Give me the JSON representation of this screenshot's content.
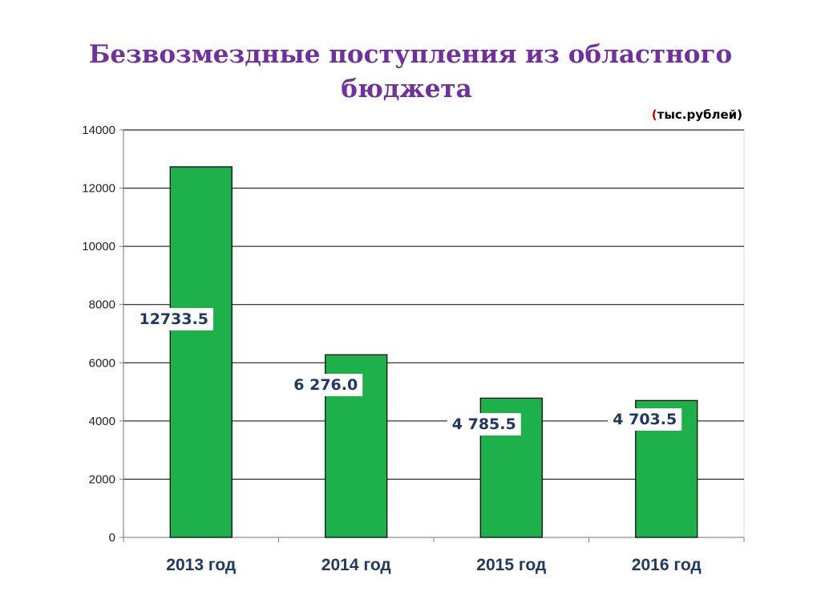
{
  "chart_data": {
    "type": "bar",
    "title_line1": "Безвозмездные поступления из областного",
    "title_line2": "бюджета",
    "unit_label": "тыс.рублей",
    "unit_open": "(",
    "unit_close": ")",
    "categories": [
      "2013 год",
      "2014 год",
      "2015 год",
      "2016 год"
    ],
    "values": [
      12733.5,
      6276.0,
      4785.5,
      4703.5
    ],
    "data_labels": [
      "12733.5",
      "6 276.0",
      "4 785.5",
      "4 703.5"
    ],
    "ylim": [
      0,
      14000
    ],
    "yticks": [
      0,
      2000,
      4000,
      6000,
      8000,
      10000,
      12000,
      14000
    ],
    "ytick_labels": [
      "0",
      "2000",
      "4000",
      "6000",
      "8000",
      "10000",
      "12000",
      "14000"
    ],
    "grid": true,
    "legend": "none",
    "xlabel": "",
    "ylabel": "",
    "colors": {
      "bar": "#1DB04B",
      "bar_edge": "#000000",
      "title": "#7030A0",
      "grid": "#000000",
      "plot_border": "#D6EBF5"
    }
  }
}
